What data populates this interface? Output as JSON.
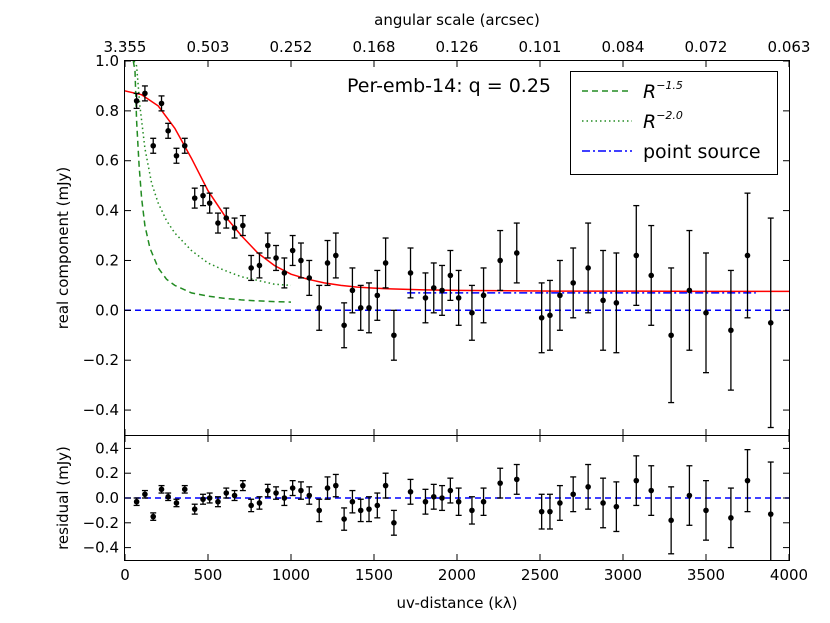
{
  "chart_data": [
    {
      "type": "scatter",
      "name": "main-panel",
      "title": "Per-emb-14: q = 0.25",
      "top_axis": {
        "label": "angular scale (arcsec)",
        "tick_labels": [
          "3.355",
          "0.503",
          "0.252",
          "0.168",
          "0.126",
          "0.101",
          "0.084",
          "0.072",
          "0.063"
        ]
      },
      "ylabel": "real component (mJy)",
      "xlim": [
        0,
        4000
      ],
      "ylim": [
        -0.5,
        1.0
      ],
      "yticks": [
        -0.4,
        -0.2,
        0.0,
        0.2,
        0.4,
        0.6,
        0.8,
        1.0
      ],
      "ytick_labels": [
        "−0.4",
        "−0.2",
        "0.0",
        "0.2",
        "0.4",
        "0.6",
        "0.8",
        "1.0"
      ],
      "legend": {
        "placement": "top-right",
        "entries": [
          {
            "label": "R^{-1.5}",
            "base": "R",
            "exp": "−1.5",
            "style": "dashed",
            "color": "#228B22"
          },
          {
            "label": "R^{-2.0}",
            "base": "R",
            "exp": "−2.0",
            "style": "dotted",
            "color": "#228B22"
          },
          {
            "label": "point source",
            "style": "dashdot",
            "color": "#0000ff"
          }
        ]
      },
      "series": [
        {
          "name": "data",
          "color": "#000000",
          "x": [
            70,
            120,
            170,
            220,
            260,
            310,
            360,
            420,
            470,
            510,
            560,
            610,
            660,
            710,
            760,
            810,
            860,
            910,
            960,
            1010,
            1060,
            1110,
            1170,
            1220,
            1270,
            1320,
            1370,
            1420,
            1470,
            1520,
            1570,
            1620,
            1720,
            1810,
            1860,
            1910,
            1960,
            2010,
            2090,
            2160,
            2260,
            2360,
            2510,
            2560,
            2620,
            2700,
            2790,
            2880,
            2960,
            3080,
            3170,
            3290,
            3400,
            3500,
            3650,
            3750,
            3890
          ],
          "y": [
            0.84,
            0.87,
            0.66,
            0.83,
            0.72,
            0.62,
            0.66,
            0.45,
            0.46,
            0.43,
            0.35,
            0.37,
            0.33,
            0.34,
            0.17,
            0.18,
            0.26,
            0.21,
            0.15,
            0.24,
            0.2,
            0.13,
            0.01,
            0.19,
            0.22,
            -0.06,
            0.08,
            0.01,
            0.01,
            0.06,
            0.19,
            -0.1,
            0.15,
            0.05,
            0.09,
            0.08,
            0.14,
            0.05,
            -0.01,
            0.06,
            0.2,
            0.23,
            -0.03,
            -0.02,
            0.06,
            0.11,
            0.17,
            0.04,
            0.03,
            0.22,
            0.14,
            -0.1,
            0.08,
            -0.01,
            -0.08,
            0.22,
            -0.05
          ],
          "err": [
            0.03,
            0.03,
            0.03,
            0.03,
            0.03,
            0.03,
            0.03,
            0.04,
            0.04,
            0.04,
            0.04,
            0.04,
            0.04,
            0.04,
            0.05,
            0.05,
            0.05,
            0.05,
            0.06,
            0.06,
            0.07,
            0.07,
            0.09,
            0.09,
            0.09,
            0.09,
            0.09,
            0.09,
            0.1,
            0.1,
            0.1,
            0.1,
            0.1,
            0.1,
            0.1,
            0.1,
            0.1,
            0.11,
            0.11,
            0.11,
            0.12,
            0.12,
            0.14,
            0.14,
            0.14,
            0.14,
            0.18,
            0.2,
            0.2,
            0.2,
            0.2,
            0.27,
            0.24,
            0.24,
            0.24,
            0.25,
            0.42
          ]
        },
        {
          "name": "model-fit",
          "style": "solid",
          "color": "#ff0000",
          "x": [
            0,
            100,
            200,
            300,
            400,
            500,
            600,
            700,
            800,
            900,
            1000,
            1100,
            1200,
            1300,
            1400,
            1500,
            1600,
            1700,
            1800,
            1900,
            2000,
            2200,
            2400,
            2600,
            2800,
            3000,
            3500,
            4000
          ],
          "y": [
            0.88,
            0.865,
            0.82,
            0.73,
            0.61,
            0.48,
            0.38,
            0.3,
            0.23,
            0.18,
            0.145,
            0.125,
            0.11,
            0.1,
            0.093,
            0.089,
            0.086,
            0.084,
            0.082,
            0.081,
            0.08,
            0.079,
            0.078,
            0.077,
            0.077,
            0.077,
            0.076,
            0.076
          ]
        },
        {
          "name": "R^-1.5",
          "style": "dashed",
          "color": "#228B22",
          "x": [
            50,
            60,
            70,
            85,
            100,
            120,
            150,
            200,
            250,
            300,
            400,
            500,
            600,
            700,
            800,
            900,
            1000
          ],
          "y": [
            1.0,
            0.96,
            0.76,
            0.58,
            0.45,
            0.34,
            0.25,
            0.17,
            0.125,
            0.1,
            0.07,
            0.057,
            0.048,
            0.042,
            0.038,
            0.035,
            0.033
          ]
        },
        {
          "name": "R^-2.0",
          "style": "dotted",
          "color": "#228B22",
          "x": [
            55,
            70,
            90,
            120,
            160,
            200,
            250,
            300,
            400,
            500,
            600,
            700,
            800,
            900,
            1000
          ],
          "y": [
            1.0,
            0.98,
            0.82,
            0.65,
            0.51,
            0.43,
            0.36,
            0.31,
            0.24,
            0.19,
            0.16,
            0.135,
            0.12,
            0.105,
            0.1
          ]
        },
        {
          "name": "point source",
          "style": "dashdot",
          "color": "#0000ff",
          "x": [
            1700,
            3800
          ],
          "y": [
            0.07,
            0.07
          ]
        },
        {
          "name": "zero-line",
          "style": "dashed",
          "color": "#0000ff",
          "x": [
            0,
            4000
          ],
          "y": [
            0.0,
            0.0
          ]
        }
      ]
    },
    {
      "type": "scatter",
      "name": "residual-panel",
      "ylabel": "residual (mJy)",
      "xlabel": "uv-distance (kλ)",
      "xlim": [
        0,
        4000
      ],
      "ylim": [
        -0.5,
        0.5
      ],
      "xticks": [
        0,
        500,
        1000,
        1500,
        2000,
        2500,
        3000,
        3500,
        4000
      ],
      "xtick_labels": [
        "0",
        "500",
        "1000",
        "1500",
        "2000",
        "2500",
        "3000",
        "3500",
        "4000"
      ],
      "yticks": [
        -0.4,
        -0.2,
        0.0,
        0.2,
        0.4
      ],
      "ytick_labels": [
        "−0.4",
        "−0.2",
        "0.0",
        "0.2",
        "0.4"
      ],
      "series": [
        {
          "name": "residuals",
          "color": "#000000",
          "x": [
            70,
            120,
            170,
            220,
            260,
            310,
            360,
            420,
            470,
            510,
            560,
            610,
            660,
            710,
            760,
            810,
            860,
            910,
            960,
            1010,
            1060,
            1110,
            1170,
            1220,
            1270,
            1320,
            1370,
            1420,
            1470,
            1520,
            1570,
            1620,
            1720,
            1810,
            1860,
            1910,
            1960,
            2010,
            2090,
            2160,
            2260,
            2360,
            2510,
            2560,
            2620,
            2700,
            2790,
            2880,
            2960,
            3080,
            3170,
            3290,
            3400,
            3500,
            3650,
            3750,
            3890
          ],
          "y": [
            -0.03,
            0.03,
            -0.15,
            0.07,
            0.01,
            -0.04,
            0.07,
            -0.09,
            -0.01,
            0.0,
            -0.03,
            0.04,
            0.02,
            0.1,
            -0.06,
            -0.04,
            0.06,
            0.04,
            0.0,
            0.08,
            0.06,
            0.02,
            -0.1,
            0.08,
            0.1,
            -0.17,
            -0.03,
            -0.1,
            -0.09,
            -0.06,
            0.1,
            -0.2,
            0.05,
            -0.03,
            0.01,
            0.0,
            0.06,
            -0.03,
            -0.1,
            -0.03,
            0.12,
            0.15,
            -0.11,
            -0.11,
            -0.04,
            0.03,
            0.09,
            -0.04,
            -0.07,
            0.14,
            0.06,
            -0.18,
            0.02,
            -0.1,
            -0.16,
            0.14,
            -0.13
          ],
          "err": [
            0.03,
            0.03,
            0.03,
            0.03,
            0.03,
            0.03,
            0.03,
            0.04,
            0.04,
            0.04,
            0.04,
            0.04,
            0.04,
            0.04,
            0.05,
            0.05,
            0.05,
            0.05,
            0.06,
            0.06,
            0.07,
            0.07,
            0.09,
            0.09,
            0.09,
            0.09,
            0.09,
            0.09,
            0.1,
            0.1,
            0.1,
            0.1,
            0.1,
            0.1,
            0.1,
            0.1,
            0.1,
            0.11,
            0.11,
            0.11,
            0.12,
            0.12,
            0.14,
            0.14,
            0.14,
            0.14,
            0.18,
            0.2,
            0.2,
            0.2,
            0.2,
            0.27,
            0.24,
            0.24,
            0.24,
            0.25,
            0.42
          ]
        },
        {
          "name": "zero-line",
          "style": "dashed",
          "color": "#0000ff",
          "x": [
            0,
            4000
          ],
          "y": [
            0.0,
            0.0
          ]
        }
      ]
    }
  ]
}
